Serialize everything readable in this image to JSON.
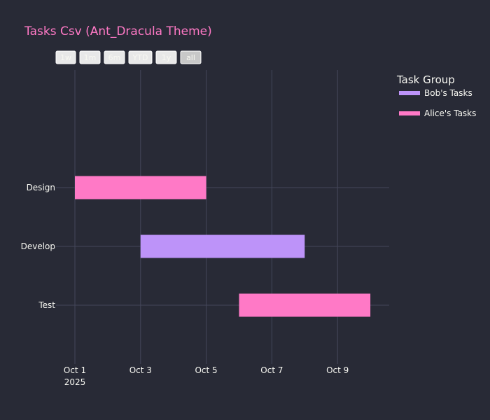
{
  "chart_data": {
    "type": "gantt",
    "title": "Tasks Csv (Ant_Dracula Theme)",
    "categories": [
      "Design",
      "Develop",
      "Test"
    ],
    "x_ticks": [
      "Oct 1",
      "Oct 3",
      "Oct 5",
      "Oct 7",
      "Oct 9"
    ],
    "x_tick_year": "2025",
    "x_range": [
      "2025-10-01",
      "2025-10-10"
    ],
    "grid": true,
    "legend": {
      "title": "Task Group",
      "placement": "top-right",
      "items": [
        {
          "name": "Bob's Tasks",
          "color": "#bd93f9"
        },
        {
          "name": "Alice's Tasks",
          "color": "#ff79c6"
        }
      ]
    },
    "tasks": [
      {
        "task": "Design",
        "start": "2025-10-01",
        "end": "2025-10-05",
        "group": "Alice's Tasks",
        "color": "#ff79c6"
      },
      {
        "task": "Develop",
        "start": "2025-10-03",
        "end": "2025-10-08",
        "group": "Bob's Tasks",
        "color": "#bd93f9"
      },
      {
        "task": "Test",
        "start": "2025-10-06",
        "end": "2025-10-10",
        "group": "Alice's Tasks",
        "color": "#ff79c6"
      }
    ],
    "range_selector": {
      "buttons": [
        "1w",
        "1m",
        "6m",
        "YTD",
        "1y",
        "all"
      ],
      "active": "all"
    }
  },
  "colors": {
    "background": "#282a36",
    "title": "#ff79c6",
    "text": "#f8f8f2",
    "grid": "#44475a"
  }
}
